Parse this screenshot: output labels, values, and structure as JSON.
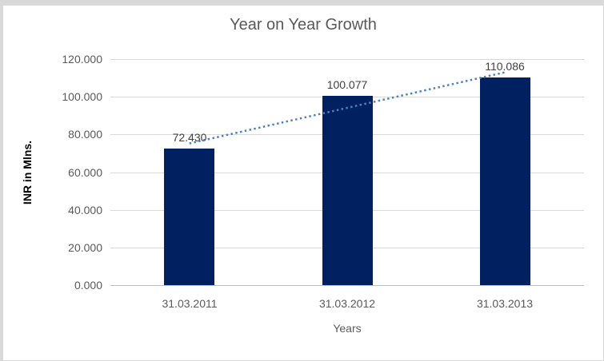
{
  "chart": {
    "title": "Year on Year Growth",
    "y_axis": {
      "title": "INR in Mlns.",
      "ticks": [
        "120.000",
        "100.000",
        "80.000",
        "60.000",
        "40.000",
        "20.000",
        "0.000"
      ]
    },
    "x_axis": {
      "title": "Years",
      "categories": [
        "31.03.2011",
        "31.03.2012",
        "31.03.2013"
      ]
    },
    "colors": {
      "bar": "#002060",
      "trendline": "#4f81bd",
      "gridline": "#d9d9d9",
      "axis_line": "#bfbfbf",
      "title_text": "#595959",
      "tick_text": "#595959",
      "data_label_text": "#404040",
      "axis_title_text": "#000000",
      "frame": "#d9d9d9",
      "background": "#ffffff"
    }
  },
  "chart_data": {
    "type": "bar",
    "title": "Year on Year Growth",
    "categories": [
      "31.03.2011",
      "31.03.2012",
      "31.03.2013"
    ],
    "values": [
      72.43,
      100.077,
      110.086
    ],
    "data_labels": [
      "72.430",
      "100.077",
      "110.086"
    ],
    "xlabel": "Years",
    "ylabel": "INR in Mlns.",
    "ylim": [
      0,
      120
    ],
    "ytick_step": 20,
    "grid": true,
    "legend": false,
    "trendline": {
      "type": "linear",
      "style": "dotted",
      "color": "#4f81bd"
    }
  }
}
